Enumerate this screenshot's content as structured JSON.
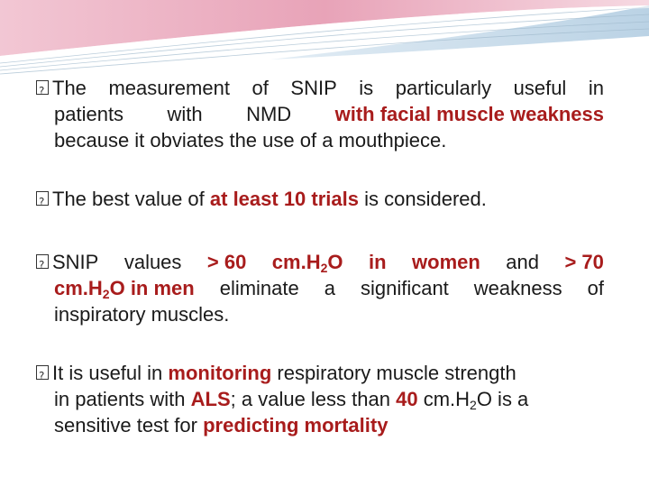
{
  "theme": {
    "accent_pink": "#e8a3b8",
    "accent_blue": "#a9c7de",
    "highlight_red": "#a81c1c",
    "text_color": "#1a1a1a"
  },
  "bullets": [
    {
      "marker_icon": "missing-glyph-box-icon",
      "lines": [
        [
          "The",
          "measurement",
          "of",
          "SNIP",
          "is",
          "particularly",
          "useful",
          "in"
        ],
        [
          "patients",
          "with",
          "NMD",
          "with facial muscle weakness"
        ],
        [
          "because it obviates the use of a mouthpiece."
        ]
      ]
    },
    {
      "marker_icon": "missing-glyph-box-icon",
      "text_a": "The best value of ",
      "text_hl": "at least 10 trials",
      "text_b": " is considered."
    },
    {
      "marker_icon": "missing-glyph-box-icon",
      "l1": {
        "a": "SNIP",
        "b": "values",
        "c": "> 60",
        "d": "cm.H",
        "d_sub": "2",
        "d_end": "O",
        "e": "in",
        "f": "women",
        "g": "and",
        "h": "> 70"
      },
      "l2": {
        "a": "cm.H",
        "a_sub": "2",
        "a_end": "O in men",
        "b": "eliminate",
        "c": "a",
        "d": "significant",
        "e": "weakness",
        "f": "of"
      },
      "l3": "inspiratory muscles."
    },
    {
      "marker_icon": "missing-glyph-box-icon",
      "l1_a": "It is useful in ",
      "l1_hl": "monitoring",
      "l1_b": " respiratory muscle strength",
      "l2_a": "in patients with ",
      "l2_hl1": "ALS",
      "l2_b": "; a value less than ",
      "l2_hl2": "40",
      "l2_c": " cm.H",
      "l2_sub": "2",
      "l2_d": "O is a",
      "l3_a": "sensitive test for ",
      "l3_hl": "predicting mortality"
    }
  ]
}
